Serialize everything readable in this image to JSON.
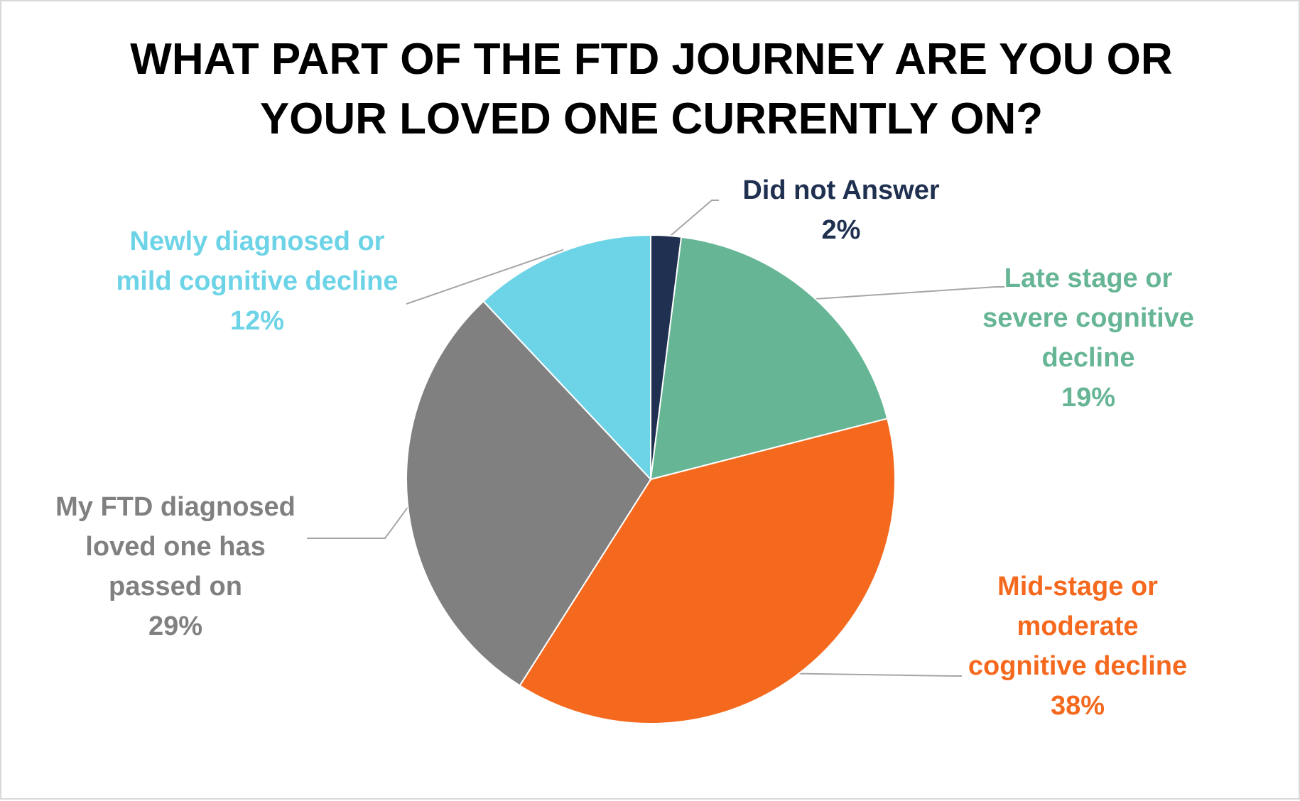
{
  "chart_data": {
    "type": "pie",
    "title_lines": [
      "WHAT PART OF THE FTD JOURNEY ARE YOU OR",
      "YOUR LOVED ONE CURRENTLY ON?"
    ],
    "start_angle_deg": 0,
    "direction": "clockwise",
    "legend": "none",
    "slices": [
      {
        "name": "Did not Answer",
        "label_lines": [
          "Did not Answer"
        ],
        "percent_label": "2%",
        "value": 2,
        "color": "#1f3050"
      },
      {
        "name": "Late stage or severe cognitive decline",
        "label_lines": [
          "Late stage or",
          "severe cognitive",
          "decline"
        ],
        "percent_label": "19%",
        "value": 19,
        "color": "#66b594"
      },
      {
        "name": "Mid-stage or moderate cognitive decline",
        "label_lines": [
          "Mid-stage or",
          "moderate",
          "cognitive decline"
        ],
        "percent_label": "38%",
        "value": 38,
        "color": "#f4691e"
      },
      {
        "name": "My FTD diagnosed loved one has passed on",
        "label_lines": [
          "My FTD diagnosed",
          "loved one has",
          "passed on"
        ],
        "percent_label": "29%",
        "value": 29,
        "color": "#808080"
      },
      {
        "name": "Newly diagnosed or mild cognitive decline",
        "label_lines": [
          "Newly diagnosed or",
          "mild cognitive decline"
        ],
        "percent_label": "12%",
        "value": 12,
        "color": "#6dd3e6"
      }
    ]
  }
}
